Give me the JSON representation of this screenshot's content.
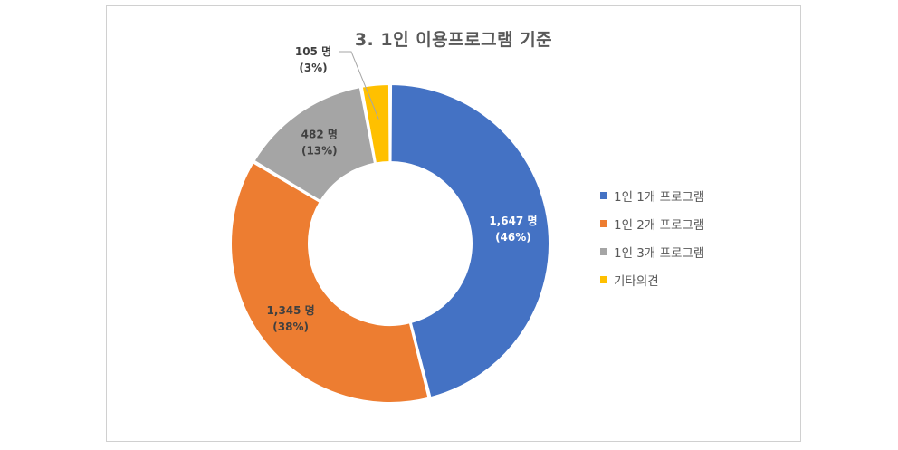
{
  "chart_data": {
    "type": "pie",
    "variant": "doughnut",
    "title": "3. 1인 이용프로그램 기준",
    "legend_position": "right",
    "categories": [
      "1인 1개 프로그램",
      "1인 2개 프로그램",
      "1인 3개 프로그램",
      "기타의견"
    ],
    "values": [
      1647,
      1345,
      482,
      105
    ],
    "value_labels": [
      "1,647 명",
      "1,345 명",
      "482 명",
      "105 명"
    ],
    "percent_labels": [
      "(46%)",
      "(38%)",
      "(13%)",
      "(3%)"
    ],
    "colors": [
      "#4472c4",
      "#ed7d31",
      "#a5a5a5",
      "#ffc000"
    ],
    "label_colors": [
      "#ffffff",
      "#404040",
      "#404040",
      "#404040"
    ]
  }
}
